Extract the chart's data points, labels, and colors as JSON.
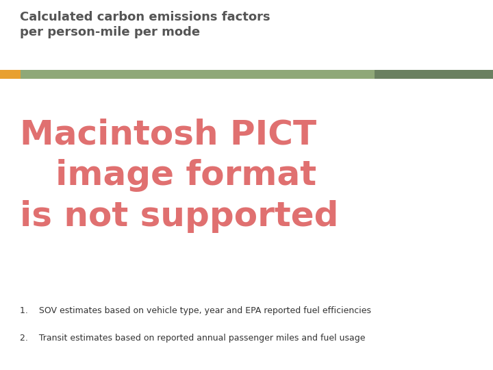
{
  "title_line1": "Calculated carbon emissions factors",
  "title_line2": "per person-mile per mode",
  "title_color": "#555555",
  "title_fontsize": 13,
  "bar_color_orange": "#E8A030",
  "bar_color_green": "#8FA878",
  "bar_color_dark_green": "#6A8060",
  "footnote1": "1.    SOV estimates based on vehicle type, year and EPA reported fuel efficiencies",
  "footnote2": "2.    Transit estimates based on reported annual passenger miles and fuel usage",
  "footnote_fontsize": 9,
  "footnote_color": "#333333",
  "bg_color": "#ffffff",
  "pict_text": "Macintosh PICT\n   image format\nis not supported",
  "pict_color": "#E07070",
  "pict_fontsize": 36
}
